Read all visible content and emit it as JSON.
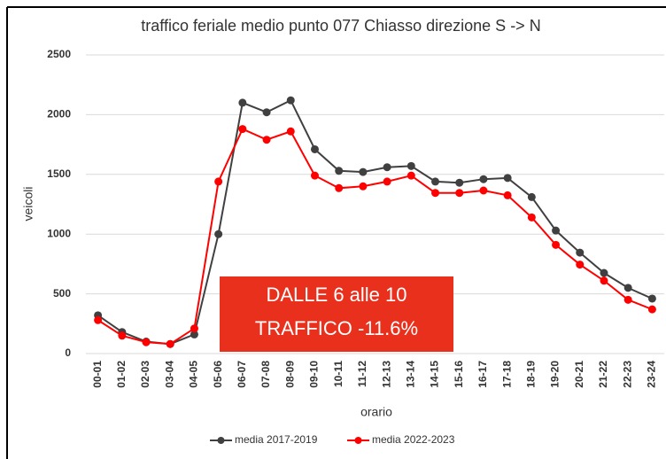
{
  "chart_data": {
    "type": "line",
    "title": "traffico feriale medio punto 077 Chiasso direzione S -> N",
    "x_label": "orario",
    "y_label": "veicoli",
    "categories": [
      "00-01",
      "01-02",
      "02-03",
      "03-04",
      "04-05",
      "05-06",
      "06-07",
      "07-08",
      "08-09",
      "09-10",
      "10-11",
      "11-12",
      "12-13",
      "13-14",
      "14-15",
      "15-16",
      "16-17",
      "17-18",
      "18-19",
      "19-20",
      "20-21",
      "21-22",
      "22-23",
      "23-24"
    ],
    "series": [
      {
        "name": "media 2017-2019",
        "color": "#404040",
        "values": [
          320,
          180,
          100,
          80,
          160,
          1000,
          2100,
          2020,
          2120,
          1710,
          1530,
          1520,
          1560,
          1570,
          1440,
          1430,
          1460,
          1470,
          1310,
          1030,
          845,
          675,
          550,
          460
        ]
      },
      {
        "name": "media 2022-2023",
        "color": "#ff0000",
        "values": [
          280,
          150,
          95,
          80,
          210,
          1440,
          1880,
          1790,
          1860,
          1490,
          1385,
          1400,
          1440,
          1490,
          1345,
          1345,
          1365,
          1325,
          1140,
          910,
          745,
          610,
          450,
          370
        ]
      }
    ],
    "ylim": [
      0,
      2500
    ],
    "yticks": [
      0,
      500,
      1000,
      1500,
      2000,
      2500
    ],
    "grid": true,
    "legend": "bottom",
    "annotation": {
      "lines": [
        "DALLE 6 alle 10",
        "TRAFFICO -11.6%"
      ],
      "color": "#e8301c"
    }
  }
}
